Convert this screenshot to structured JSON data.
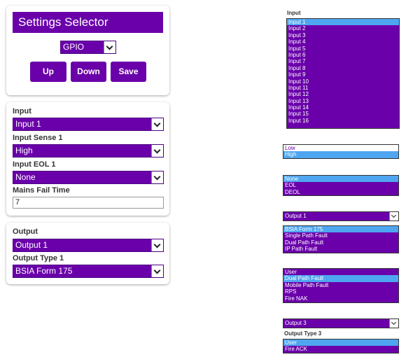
{
  "settings_selector": {
    "title": "Settings Selector",
    "mode_select": "GPIO",
    "buttons": {
      "up": "Up",
      "down": "Down",
      "save": "Save"
    }
  },
  "input_card": {
    "input_label": "Input",
    "input_value": "Input 1",
    "sense_label": "Input Sense 1",
    "sense_value": "High",
    "eol_label": "Input EOL 1",
    "eol_value": "None",
    "mains_label": "Mains Fail Time",
    "mains_value": "7"
  },
  "output_card": {
    "output_label": "Output",
    "output_value": "Output 1",
    "type_label": "Output Type 1",
    "type_value": "BSIA Form 175"
  },
  "dropdowns": {
    "input_list": {
      "label": "Input",
      "options": [
        "Input 1",
        "Input 2",
        "Input 3",
        "Input 4",
        "Input 5",
        "Input 6",
        "Input 7",
        "Input 8",
        "Input 9",
        "Input 10",
        "Input 11",
        "Input 12",
        "Input 13",
        "Input 14",
        "Input 15",
        "Input 16"
      ],
      "selected": "Input 1"
    },
    "sense_list": {
      "options": [
        "Low",
        "High"
      ],
      "selected": "High"
    },
    "eol_list": {
      "options": [
        "None",
        "EOL",
        "DEOL"
      ],
      "selected": "None"
    },
    "output_select": "Output 1",
    "type1_list": {
      "options": [
        "BSIA Form 175",
        "Single Path Fault",
        "Dual Path Fault",
        "IP Path Fault"
      ],
      "selected": "BSIA Form 175"
    },
    "type2_list": {
      "options": [
        "User",
        "Dual Path Fault",
        "Mobile Path Fault",
        "RPS",
        "Fire NAK"
      ],
      "selected": "Dual Path Fault"
    },
    "output3_select": "Output 3",
    "type3_label": "Output Type 3",
    "type3_list": {
      "options": [
        "User",
        "Fire ACK"
      ],
      "selected": "User"
    }
  },
  "colors": {
    "purple": "#6a00aa",
    "highlight": "#4fa6f0"
  }
}
